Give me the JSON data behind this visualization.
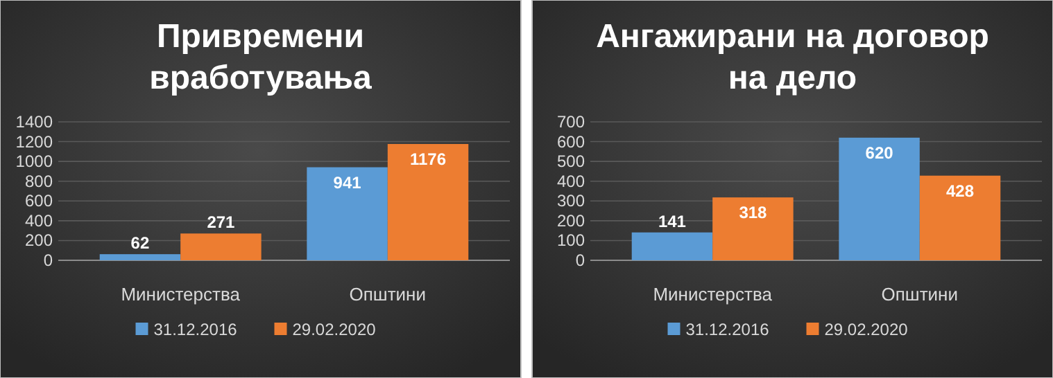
{
  "chart_data": [
    {
      "type": "bar",
      "title": "Привремени\nвработувања",
      "categories": [
        "Министерства",
        "Општини"
      ],
      "series": [
        {
          "name": "31.12.2016",
          "color": "#5b9bd5",
          "values": [
            62,
            941
          ]
        },
        {
          "name": "29.02.2020",
          "color": "#ed7d31",
          "values": [
            271,
            1176
          ]
        }
      ],
      "ylim": [
        0,
        1400
      ],
      "yticks": [
        0,
        200,
        400,
        600,
        800,
        1000,
        1200,
        1400
      ],
      "grid": "y",
      "legend": "bottom",
      "data_labels": true
    },
    {
      "type": "bar",
      "title": "Ангажирани на договор\nна дело",
      "categories": [
        "Министерства",
        "Општини"
      ],
      "series": [
        {
          "name": "31.12.2016",
          "color": "#5b9bd5",
          "values": [
            141,
            620
          ]
        },
        {
          "name": "29.02.2020",
          "color": "#ed7d31",
          "values": [
            318,
            428
          ]
        }
      ],
      "ylim": [
        0,
        700
      ],
      "yticks": [
        0,
        100,
        200,
        300,
        400,
        500,
        600,
        700
      ],
      "grid": "y",
      "legend": "bottom",
      "data_labels": true
    }
  ]
}
